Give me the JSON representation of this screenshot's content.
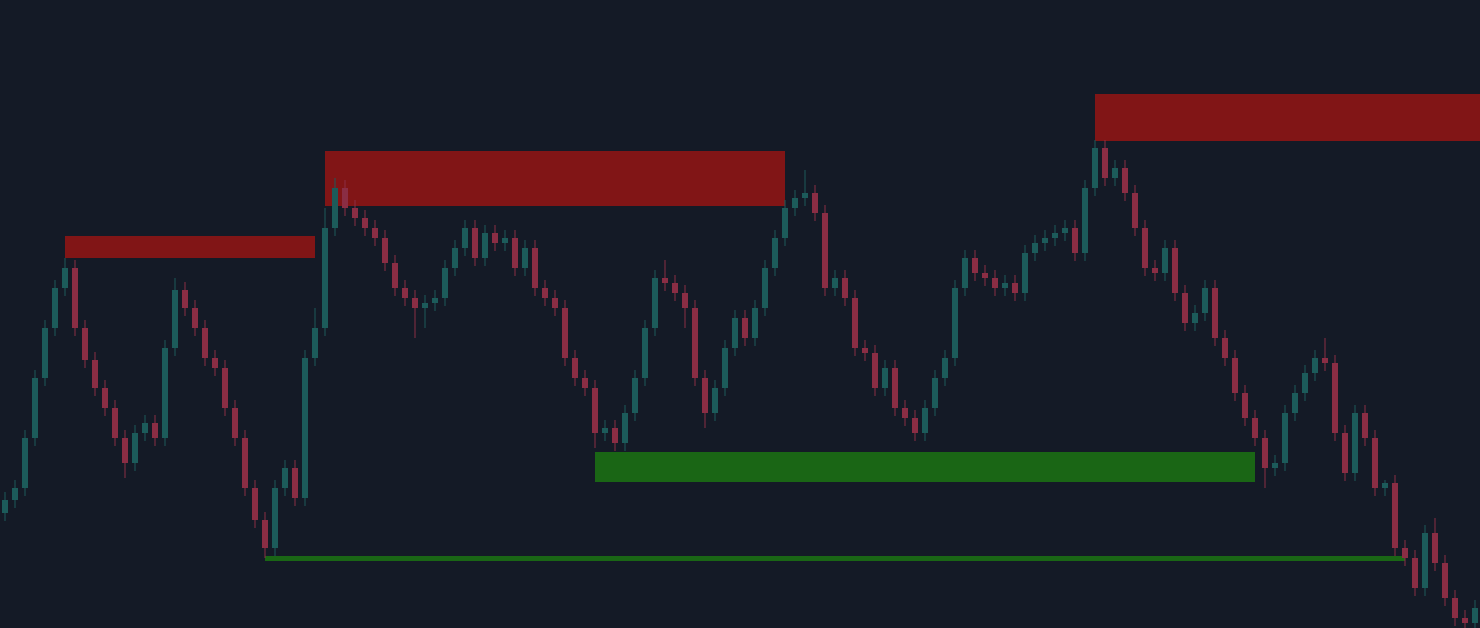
{
  "chart_data": {
    "type": "candlestick",
    "ylim": [
      0,
      628
    ],
    "up_color": "#1c5b5a",
    "down_color": "#8a2d44",
    "open": [
      115,
      128,
      140,
      190,
      250,
      300,
      340,
      360,
      300,
      268,
      240,
      220,
      190,
      165,
      195,
      205,
      190,
      280,
      338,
      320,
      300,
      270,
      260,
      220,
      190,
      140,
      108,
      80,
      140,
      160,
      130,
      270,
      300,
      400,
      440,
      420,
      410,
      400,
      390,
      365,
      340,
      330,
      320,
      325,
      330,
      360,
      380,
      400,
      370,
      395,
      385,
      390,
      360,
      380,
      340,
      330,
      320,
      270,
      250,
      240,
      195,
      200,
      185,
      215,
      250,
      300,
      350,
      345,
      335,
      320,
      250,
      215,
      240,
      280,
      310,
      290,
      320,
      360,
      390,
      420,
      430,
      435,
      415,
      340,
      350,
      330,
      280,
      275,
      240,
      260,
      220,
      210,
      195,
      220,
      250,
      270,
      340,
      370,
      355,
      350,
      340,
      345,
      335,
      375,
      385,
      390,
      395,
      400,
      375,
      440,
      480,
      450,
      460,
      435,
      400,
      360,
      355,
      380,
      335,
      305,
      315,
      340,
      290,
      270,
      235,
      210,
      190,
      160,
      165,
      215,
      235,
      255,
      270,
      265,
      195,
      155,
      215,
      190,
      140,
      145,
      80,
      70,
      40,
      95,
      65,
      30,
      10,
      5
    ],
    "high": [
      136,
      148,
      198,
      258,
      308,
      348,
      370,
      368,
      308,
      276,
      248,
      228,
      198,
      203,
      213,
      213,
      288,
      350,
      346,
      328,
      308,
      278,
      268,
      228,
      198,
      148,
      116,
      148,
      168,
      168,
      278,
      320,
      420,
      450,
      448,
      428,
      418,
      408,
      398,
      373,
      348,
      338,
      333,
      338,
      368,
      388,
      408,
      408,
      403,
      403,
      398,
      398,
      388,
      388,
      348,
      338,
      328,
      278,
      258,
      248,
      208,
      208,
      223,
      258,
      308,
      358,
      368,
      353,
      343,
      328,
      258,
      248,
      288,
      318,
      318,
      328,
      368,
      398,
      428,
      438,
      458,
      443,
      423,
      358,
      358,
      338,
      288,
      283,
      268,
      268,
      228,
      218,
      228,
      258,
      278,
      348,
      378,
      378,
      363,
      358,
      353,
      353,
      383,
      393,
      398,
      403,
      408,
      408,
      448,
      488,
      488,
      468,
      468,
      443,
      408,
      368,
      388,
      388,
      343,
      323,
      348,
      348,
      298,
      278,
      243,
      218,
      198,
      173,
      223,
      243,
      263,
      278,
      290,
      273,
      203,
      223,
      223,
      198,
      148,
      153,
      88,
      78,
      103,
      110,
      73,
      38,
      18,
      28
    ],
    "low": [
      107,
      120,
      132,
      182,
      242,
      292,
      332,
      292,
      260,
      232,
      212,
      182,
      150,
      157,
      187,
      182,
      182,
      272,
      312,
      292,
      262,
      252,
      212,
      182,
      132,
      100,
      70,
      72,
      132,
      122,
      122,
      262,
      292,
      392,
      412,
      402,
      392,
      382,
      357,
      332,
      322,
      290,
      300,
      317,
      322,
      352,
      372,
      362,
      362,
      377,
      377,
      352,
      352,
      332,
      322,
      312,
      262,
      242,
      232,
      180,
      187,
      177,
      177,
      207,
      242,
      292,
      337,
      327,
      300,
      242,
      200,
      207,
      232,
      272,
      282,
      282,
      312,
      352,
      382,
      412,
      422,
      407,
      332,
      332,
      322,
      272,
      267,
      232,
      232,
      212,
      202,
      187,
      187,
      212,
      242,
      262,
      332,
      347,
      342,
      332,
      332,
      327,
      327,
      367,
      377,
      382,
      387,
      367,
      367,
      432,
      442,
      442,
      427,
      392,
      352,
      347,
      347,
      327,
      297,
      297,
      307,
      282,
      262,
      227,
      202,
      182,
      140,
      152,
      157,
      207,
      227,
      247,
      257,
      187,
      147,
      147,
      182,
      132,
      132,
      72,
      62,
      32,
      32,
      57,
      22,
      2,
      0,
      0
    ],
    "close": [
      128,
      140,
      190,
      250,
      300,
      340,
      360,
      300,
      268,
      240,
      220,
      190,
      165,
      195,
      205,
      190,
      280,
      338,
      320,
      300,
      270,
      260,
      220,
      190,
      140,
      108,
      80,
      140,
      160,
      130,
      270,
      300,
      400,
      440,
      420,
      410,
      400,
      390,
      365,
      340,
      330,
      320,
      325,
      330,
      360,
      380,
      400,
      370,
      395,
      385,
      390,
      360,
      380,
      340,
      330,
      320,
      270,
      250,
      240,
      195,
      200,
      185,
      215,
      250,
      300,
      350,
      345,
      335,
      320,
      250,
      215,
      240,
      280,
      310,
      290,
      320,
      360,
      390,
      420,
      430,
      435,
      415,
      340,
      350,
      330,
      280,
      275,
      240,
      260,
      220,
      210,
      195,
      220,
      250,
      270,
      340,
      370,
      355,
      350,
      340,
      345,
      335,
      375,
      385,
      390,
      395,
      400,
      375,
      440,
      480,
      450,
      460,
      435,
      400,
      360,
      355,
      380,
      335,
      305,
      315,
      340,
      290,
      270,
      235,
      210,
      190,
      160,
      165,
      215,
      235,
      255,
      270,
      265,
      195,
      155,
      215,
      190,
      140,
      145,
      80,
      70,
      40,
      95,
      65,
      30,
      10,
      5,
      20
    ],
    "zones": [
      {
        "start": 6,
        "end": 31,
        "top": 392,
        "bottom": 370,
        "color": "#8b1515"
      },
      {
        "start": 32,
        "end": 78,
        "top": 477,
        "bottom": 422,
        "color": "#8b1515"
      },
      {
        "start": 109,
        "end": 148,
        "top": 534,
        "bottom": 487,
        "color": "#8b1515"
      },
      {
        "start": 59,
        "end": 125,
        "top": 176,
        "bottom": 146,
        "color": "#1b6d14"
      },
      {
        "start": 26,
        "end": 140,
        "top": 72,
        "bottom": 67,
        "color": "#1b6d14"
      }
    ]
  }
}
